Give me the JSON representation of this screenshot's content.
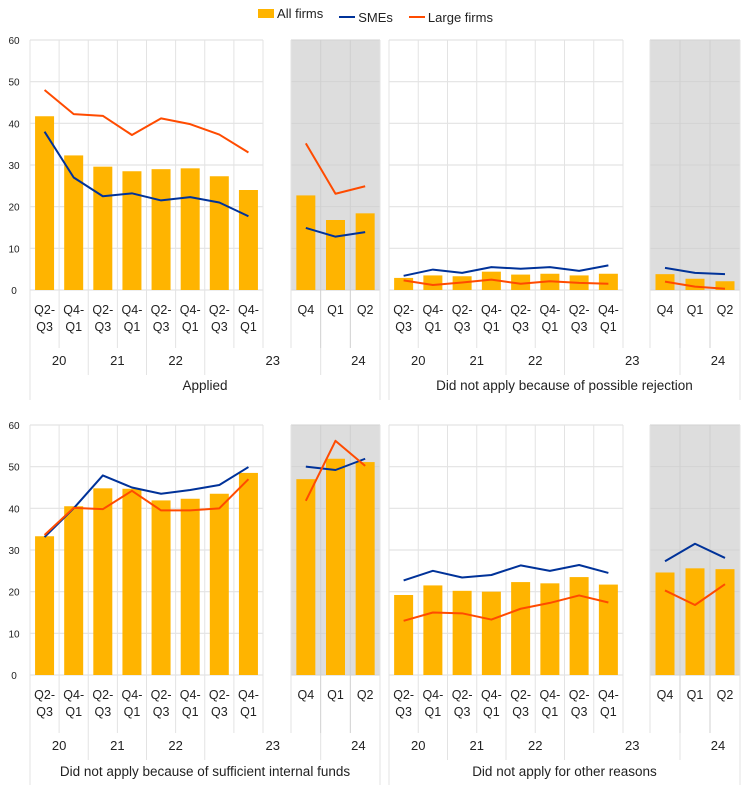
{
  "legend": [
    {
      "name": "All firms",
      "type": "bar",
      "color": "#FFB400"
    },
    {
      "name": "SMEs",
      "type": "line",
      "color": "#003299"
    },
    {
      "name": "Large firms",
      "type": "line",
      "color": "#FF4B00"
    }
  ],
  "chart_data": [
    {
      "type": "bar",
      "title": "Applied",
      "ylim": [
        0,
        60
      ],
      "yticks": [
        0,
        10,
        20,
        30,
        40,
        50,
        60
      ],
      "grid": true,
      "legend_position": "top-center",
      "categories_main": [
        "Q2-Q3",
        "Q4-Q1",
        "Q2-Q3",
        "Q4-Q1",
        "Q2-Q3",
        "Q4-Q1",
        "Q2-Q3",
        "Q4-Q1"
      ],
      "categories_recent": [
        "Q4",
        "Q1",
        "Q2"
      ],
      "year_labels": [
        "20",
        "21",
        "22",
        "23",
        "24"
      ],
      "series": [
        {
          "name": "All firms",
          "values_main": [
            41.7,
            32.3,
            29.6,
            28.5,
            29.0,
            29.2,
            27.3,
            24.0
          ],
          "values_recent": [
            22.7,
            16.8,
            18.4
          ]
        },
        {
          "name": "SMEs",
          "values_main": [
            38.0,
            27.0,
            22.5,
            23.2,
            21.5,
            22.3,
            21.0,
            17.7
          ],
          "values_recent": [
            14.9,
            12.8,
            13.9
          ]
        },
        {
          "name": "Large firms",
          "values_main": [
            48.0,
            42.2,
            41.8,
            37.2,
            41.2,
            39.8,
            37.3,
            33.0
          ],
          "values_recent": [
            35.2,
            23.1,
            24.9
          ]
        }
      ]
    },
    {
      "type": "bar",
      "title": "Did not apply because of possible rejection",
      "ylim": [
        0,
        60
      ],
      "yticks": [
        0,
        10,
        20,
        30,
        40,
        50,
        60
      ],
      "grid": true,
      "categories_main": [
        "Q2-Q3",
        "Q4-Q1",
        "Q2-Q3",
        "Q4-Q1",
        "Q2-Q3",
        "Q4-Q1",
        "Q2-Q3",
        "Q4-Q1"
      ],
      "categories_recent": [
        "Q4",
        "Q1",
        "Q2"
      ],
      "year_labels": [
        "20",
        "21",
        "22",
        "23",
        "24"
      ],
      "series": [
        {
          "name": "All firms",
          "values_main": [
            2.9,
            3.5,
            3.3,
            4.4,
            3.7,
            3.9,
            3.5,
            3.9
          ],
          "values_recent": [
            3.8,
            2.7,
            2.1
          ]
        },
        {
          "name": "SMEs",
          "values_main": [
            3.4,
            4.9,
            4.1,
            5.5,
            5.1,
            5.5,
            4.6,
            5.9
          ],
          "values_recent": [
            5.3,
            4.1,
            3.8
          ]
        },
        {
          "name": "Large firms",
          "values_main": [
            2.3,
            1.2,
            1.8,
            2.5,
            1.5,
            2.1,
            1.7,
            1.5
          ],
          "values_recent": [
            2.0,
            0.8,
            0.3
          ]
        }
      ]
    },
    {
      "type": "bar",
      "title": "Did not apply because of sufficient internal funds",
      "ylim": [
        0,
        60
      ],
      "yticks": [
        0,
        10,
        20,
        30,
        40,
        50,
        60
      ],
      "grid": true,
      "categories_main": [
        "Q2-Q3",
        "Q4-Q1",
        "Q2-Q3",
        "Q4-Q1",
        "Q2-Q3",
        "Q4-Q1",
        "Q2-Q3",
        "Q4-Q1"
      ],
      "categories_recent": [
        "Q4",
        "Q1",
        "Q2"
      ],
      "year_labels": [
        "20",
        "21",
        "22",
        "23",
        "24"
      ],
      "series": [
        {
          "name": "All firms",
          "values_main": [
            33.3,
            40.5,
            44.8,
            44.7,
            41.9,
            42.3,
            43.5,
            48.5
          ],
          "values_recent": [
            47.0,
            51.9,
            51.1
          ]
        },
        {
          "name": "SMEs",
          "values_main": [
            33.1,
            40.0,
            47.9,
            45.0,
            43.5,
            44.4,
            45.6,
            49.9
          ],
          "values_recent": [
            50.0,
            49.2,
            51.9
          ]
        },
        {
          "name": "Large firms",
          "values_main": [
            33.6,
            40.1,
            39.8,
            44.2,
            39.5,
            39.5,
            40.0,
            47.0
          ],
          "values_recent": [
            41.8,
            56.2,
            50.2
          ]
        }
      ]
    },
    {
      "type": "bar",
      "title": "Did not apply for other reasons",
      "ylim": [
        0,
        60
      ],
      "yticks": [
        0,
        10,
        20,
        30,
        40,
        50,
        60
      ],
      "grid": true,
      "categories_main": [
        "Q2-Q3",
        "Q4-Q1",
        "Q2-Q3",
        "Q4-Q1",
        "Q2-Q3",
        "Q4-Q1",
        "Q2-Q3",
        "Q4-Q1"
      ],
      "categories_recent": [
        "Q4",
        "Q1",
        "Q2"
      ],
      "year_labels": [
        "20",
        "21",
        "22",
        "23",
        "24"
      ],
      "series": [
        {
          "name": "All firms",
          "values_main": [
            19.2,
            21.5,
            20.2,
            20.0,
            22.3,
            22.0,
            23.5,
            21.7
          ],
          "values_recent": [
            24.6,
            25.6,
            25.4
          ]
        },
        {
          "name": "SMEs",
          "values_main": [
            22.7,
            25.0,
            23.4,
            24.0,
            26.3,
            25.0,
            26.4,
            24.5
          ],
          "values_recent": [
            27.3,
            31.5,
            28.1
          ]
        },
        {
          "name": "Large firms",
          "values_main": [
            13.0,
            15.0,
            14.8,
            13.3,
            15.9,
            17.3,
            19.1,
            17.4
          ],
          "values_recent": [
            20.3,
            16.8,
            21.8
          ]
        }
      ]
    }
  ]
}
